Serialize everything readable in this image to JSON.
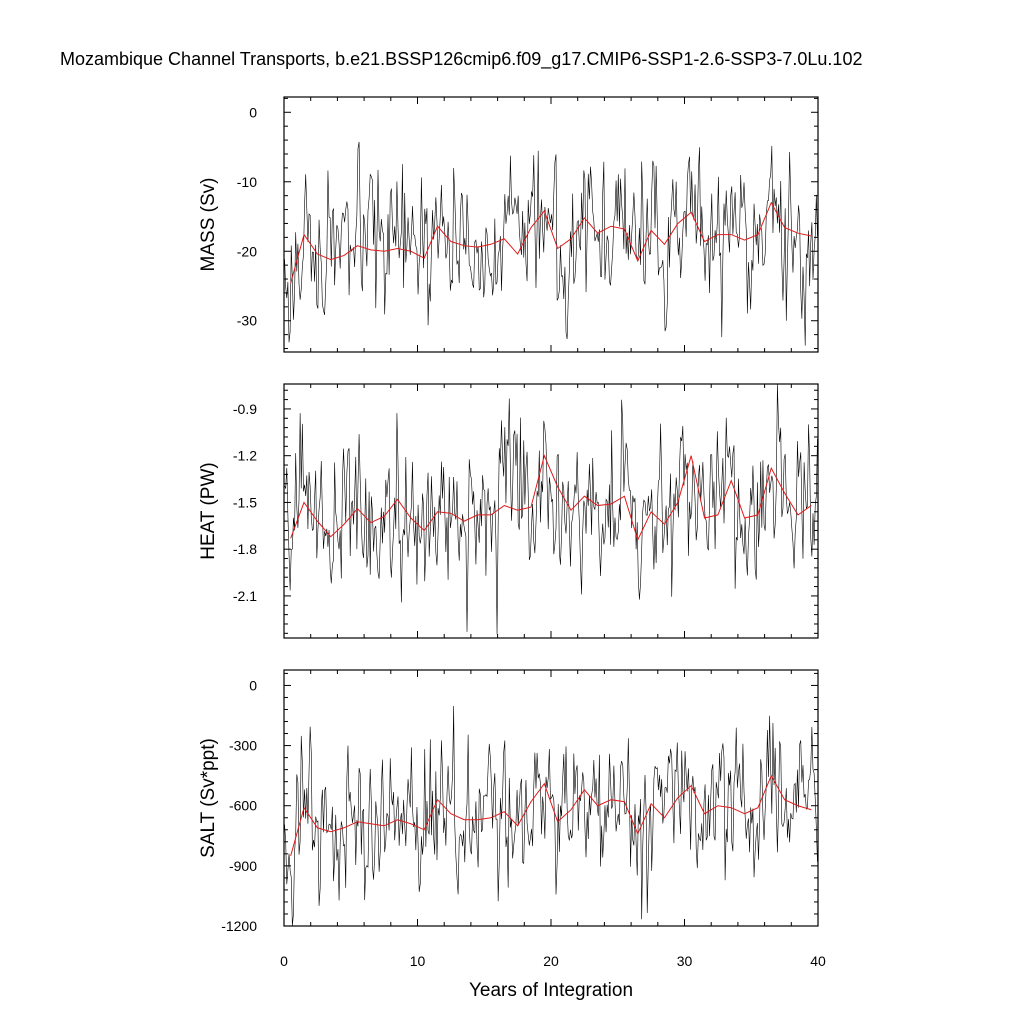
{
  "chart_data": {
    "type": "line",
    "title": "Mozambique Channel Transports, b.e21.BSSP126cmip6.f09_g17.CMIP6-SSP1-2.6-SSP3-7.0Lu.102",
    "xlabel": "Years of Integration",
    "xlim": [
      0,
      40
    ],
    "xticks": [
      0,
      10,
      20,
      30,
      40
    ],
    "panels": [
      {
        "name": "mass",
        "ylabel": "MASS (Sv)",
        "ylim": [
          -34.5,
          2.2
        ],
        "yticks": [
          0,
          -10,
          -20,
          -30
        ],
        "ytick_labels": [
          "0",
          "-10",
          "-20",
          "-30"
        ],
        "annual_mean": [
          [
            0.5,
            -24.6
          ],
          [
            1.5,
            -17.6
          ],
          [
            2.5,
            -20.4
          ],
          [
            3.5,
            -21.2
          ],
          [
            4.5,
            -20.6
          ],
          [
            5.5,
            -19.2
          ],
          [
            6.5,
            -19.8
          ],
          [
            7.5,
            -20.0
          ],
          [
            8.5,
            -19.6
          ],
          [
            9.5,
            -20.0
          ],
          [
            10.5,
            -21.0
          ],
          [
            11.5,
            -16.4
          ],
          [
            12.5,
            -18.6
          ],
          [
            13.5,
            -19.2
          ],
          [
            14.5,
            -19.4
          ],
          [
            15.5,
            -19.0
          ],
          [
            16.5,
            -18.2
          ],
          [
            17.5,
            -20.4
          ],
          [
            18.5,
            -16.6
          ],
          [
            19.5,
            -14.2
          ],
          [
            20.5,
            -19.6
          ],
          [
            21.5,
            -18.2
          ],
          [
            22.5,
            -15.2
          ],
          [
            23.5,
            -17.4
          ],
          [
            24.5,
            -16.4
          ],
          [
            25.5,
            -16.8
          ],
          [
            26.5,
            -21.4
          ],
          [
            27.5,
            -17.0
          ],
          [
            28.5,
            -19.0
          ],
          [
            29.5,
            -16.0
          ],
          [
            30.5,
            -14.4
          ],
          [
            31.5,
            -18.6
          ],
          [
            32.5,
            -17.6
          ],
          [
            33.5,
            -17.6
          ],
          [
            34.5,
            -18.4
          ],
          [
            35.5,
            -17.6
          ],
          [
            36.5,
            -13.0
          ],
          [
            37.5,
            -16.6
          ],
          [
            38.5,
            -17.4
          ],
          [
            39.5,
            -17.8
          ]
        ]
      },
      {
        "name": "heat",
        "ylabel": "HEAT (PW)",
        "ylim": [
          -2.37,
          -0.74
        ],
        "yticks": [
          -0.9,
          -1.2,
          -1.5,
          -1.8,
          -2.1
        ],
        "ytick_labels": [
          "-0.9",
          "-1.2",
          "-1.5",
          "-1.8",
          "-2.1"
        ],
        "annual_mean": [
          [
            0.5,
            -1.73
          ],
          [
            1.5,
            -1.5
          ],
          [
            2.5,
            -1.62
          ],
          [
            3.5,
            -1.72
          ],
          [
            4.5,
            -1.64
          ],
          [
            5.5,
            -1.54
          ],
          [
            6.5,
            -1.63
          ],
          [
            7.5,
            -1.59
          ],
          [
            8.5,
            -1.48
          ],
          [
            9.5,
            -1.6
          ],
          [
            10.5,
            -1.68
          ],
          [
            11.5,
            -1.56
          ],
          [
            12.5,
            -1.57
          ],
          [
            13.5,
            -1.62
          ],
          [
            14.5,
            -1.58
          ],
          [
            15.5,
            -1.58
          ],
          [
            16.5,
            -1.52
          ],
          [
            17.5,
            -1.55
          ],
          [
            18.5,
            -1.53
          ],
          [
            19.5,
            -1.2
          ],
          [
            20.5,
            -1.4
          ],
          [
            21.5,
            -1.55
          ],
          [
            22.5,
            -1.46
          ],
          [
            23.5,
            -1.52
          ],
          [
            24.5,
            -1.51
          ],
          [
            25.5,
            -1.46
          ],
          [
            26.5,
            -1.74
          ],
          [
            27.5,
            -1.56
          ],
          [
            28.5,
            -1.64
          ],
          [
            29.5,
            -1.5
          ],
          [
            30.5,
            -1.2
          ],
          [
            31.5,
            -1.6
          ],
          [
            32.5,
            -1.58
          ],
          [
            33.5,
            -1.36
          ],
          [
            34.5,
            -1.6
          ],
          [
            35.5,
            -1.58
          ],
          [
            36.5,
            -1.28
          ],
          [
            37.5,
            -1.44
          ],
          [
            38.5,
            -1.58
          ],
          [
            39.5,
            -1.52
          ]
        ]
      },
      {
        "name": "salt",
        "ylabel": "SALT (Sv*ppt)",
        "ylim": [
          -1200,
          77
        ],
        "yticks": [
          0,
          -300,
          -600,
          -900,
          -1200
        ],
        "ytick_labels": [
          "0",
          "-300",
          "-600",
          "-900",
          "-1200"
        ],
        "annual_mean": [
          [
            0.5,
            -850
          ],
          [
            1.5,
            -610
          ],
          [
            2.5,
            -710
          ],
          [
            3.5,
            -730
          ],
          [
            4.5,
            -710
          ],
          [
            5.5,
            -680
          ],
          [
            6.5,
            -690
          ],
          [
            7.5,
            -700
          ],
          [
            8.5,
            -670
          ],
          [
            9.5,
            -690
          ],
          [
            10.5,
            -720
          ],
          [
            11.5,
            -570
          ],
          [
            12.5,
            -640
          ],
          [
            13.5,
            -670
          ],
          [
            14.5,
            -670
          ],
          [
            15.5,
            -660
          ],
          [
            16.5,
            -630
          ],
          [
            17.5,
            -700
          ],
          [
            18.5,
            -580
          ],
          [
            19.5,
            -490
          ],
          [
            20.5,
            -680
          ],
          [
            21.5,
            -620
          ],
          [
            22.5,
            -520
          ],
          [
            23.5,
            -600
          ],
          [
            24.5,
            -570
          ],
          [
            25.5,
            -580
          ],
          [
            26.5,
            -740
          ],
          [
            27.5,
            -590
          ],
          [
            28.5,
            -660
          ],
          [
            29.5,
            -560
          ],
          [
            30.5,
            -500
          ],
          [
            31.5,
            -640
          ],
          [
            32.5,
            -600
          ],
          [
            33.5,
            -610
          ],
          [
            34.5,
            -640
          ],
          [
            35.5,
            -610
          ],
          [
            36.5,
            -450
          ],
          [
            37.5,
            -570
          ],
          [
            38.5,
            -600
          ],
          [
            39.5,
            -620
          ]
        ]
      }
    ],
    "series_styles": {
      "monthly": {
        "color": "#000000",
        "stroke_width": 0.6
      },
      "annual_mean": {
        "color": "#e11a1a",
        "stroke_width": 1.0
      }
    },
    "grid": false,
    "legend": "none"
  }
}
